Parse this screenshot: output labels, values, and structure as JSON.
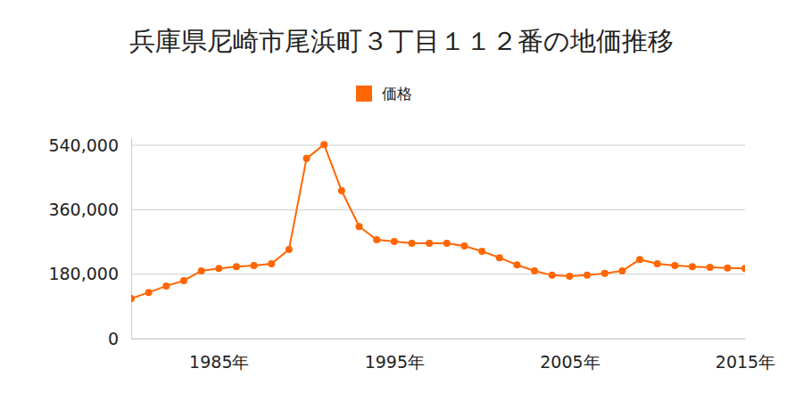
{
  "chart_data": {
    "type": "line",
    "title": "兵庫県尼崎市尾浜町３丁目１１２番の地価推移",
    "x": [
      1980,
      1981,
      1982,
      1983,
      1984,
      1985,
      1986,
      1987,
      1988,
      1989,
      1990,
      1991,
      1992,
      1993,
      1994,
      1995,
      1996,
      1997,
      1998,
      1999,
      2000,
      2001,
      2002,
      2003,
      2004,
      2005,
      2006,
      2007,
      2008,
      2009,
      2010,
      2011,
      2012,
      2013,
      2014,
      2015
    ],
    "series": [
      {
        "name": "価格",
        "color": "#ff6600",
        "marker": "circle",
        "values": [
          112000,
          129000,
          147000,
          162000,
          189000,
          196000,
          201000,
          204000,
          209000,
          249000,
          503000,
          542000,
          413000,
          313000,
          276000,
          271000,
          266000,
          266000,
          266000,
          259000,
          244000,
          226000,
          206000,
          189000,
          177000,
          174000,
          177000,
          182000,
          189000,
          221000,
          209000,
          204000,
          201000,
          199000,
          197000,
          196000
        ]
      }
    ],
    "xlim": [
      1980,
      2015
    ],
    "xticks": [
      {
        "value": 1985,
        "label": "1985年"
      },
      {
        "value": 1995,
        "label": "1995年"
      },
      {
        "value": 2005,
        "label": "2005年"
      },
      {
        "value": 2015,
        "label": "2015年"
      }
    ],
    "ylim": [
      0,
      560000
    ],
    "yticks": [
      0,
      {
        "value": 180000,
        "label": "180,000"
      },
      {
        "value": 360000,
        "label": "360,000"
      },
      {
        "value": 540000,
        "label": "540,000"
      }
    ],
    "grid": true,
    "legend": "top"
  }
}
